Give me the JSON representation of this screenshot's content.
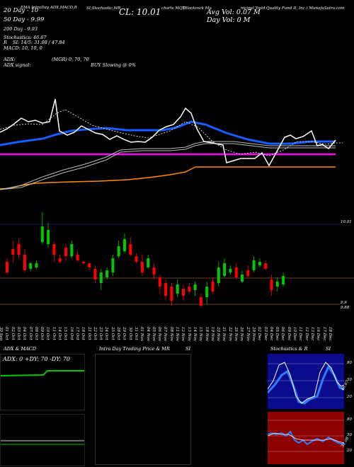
{
  "header": {
    "line1_a": "20 Day - 10",
    "line1_b": "EMA IntraDay ADX,MACD,R",
    "line1_c": "SI,Stochastic,MR",
    "cl_label": "CL: 10.01",
    "line1_d": "charts MQT",
    "line1_e": "(Blackrock Mu",
    "avg_vol": "Avg Vol: 0.07  M",
    "line1_f": "nicipal Yield Quality Fund II, Inc.) MunafaSutra.com",
    "ma50": "50 Day - 9.99",
    "day_vol": "Day Vol: 0  M",
    "ma200": "200 Day - 9.93",
    "stoch": "Stochastics: 46.67",
    "rsi": "SI: 14/5: 31.08 / 47.84",
    "rsi_prefix": "R",
    "macd": "MACD: 10, 10, 0",
    "adx": "ADX:",
    "mrg": "(MGR) 0, 70,  70",
    "adx_signal": "ADX  signal:",
    "buy_slowing": "BUY Slowing @ 0%"
  },
  "price_labels": {
    "p1": "10.01",
    "p2": "9.9",
    "p3": "9.88"
  },
  "dates": [
    "30 Sep",
    "01 Oct",
    "02 Oct",
    "03 Oct",
    "04 Oct",
    "07 Oct",
    "08 Oct",
    "09 Oct",
    "10 Oct",
    "11 Oct",
    "14 Oct",
    "15 Oct",
    "16 Oct",
    "17 Oct",
    "18 Oct",
    "21 Oct",
    "22 Oct",
    "23 Oct",
    "24 Oct",
    "25 Oct",
    "28 Oct",
    "29 Oct",
    "30 Oct",
    "31 Oct",
    "01 Nov",
    "04 Nov",
    "05 Nov",
    "06 Nov",
    "07 Nov",
    "08 Nov",
    "11 Nov",
    "12 Nov",
    "13 Nov",
    "14 Nov",
    "15 Nov",
    "18 Nov",
    "19 Nov",
    "20 Nov",
    "21 Nov",
    "22 Nov",
    "25 Nov",
    "26 Nov",
    "27 Nov",
    "29 Nov",
    "02 Dec",
    "03 Dec",
    "04 Dec",
    "05 Dec",
    "06 Dec",
    "09 Dec",
    "10 Dec",
    "11 Dec",
    "12 Dec",
    "13 Dec",
    "16 Dec",
    "17 Dec",
    "18 Dec"
  ],
  "panels": {
    "adx_title": "ADX  & MACD",
    "adx_values": "ADX: 0  +DY: 70  -DY: 70",
    "intraday_title_a": "Intra Day Trading Price  & MR",
    "intraday_title_b": "SI",
    "stoch_title_a": "Stochastics & R",
    "stoch_title_b": "SI",
    "stoch_ticks": [
      "80",
      "50",
      "20"
    ],
    "stoch_value": "46.67",
    "rsi_ticks": [
      "80",
      "50",
      "20"
    ],
    "rsi_value": "31.08"
  },
  "colors": {
    "up": "#00c800",
    "down": "#ff0000",
    "ema20": "#1a5cff",
    "ma50": "#ff00ff",
    "ma200": "#ff8c00",
    "stoch_bg": "#0a0a8c",
    "rsi_bg": "#8c0000"
  }
}
